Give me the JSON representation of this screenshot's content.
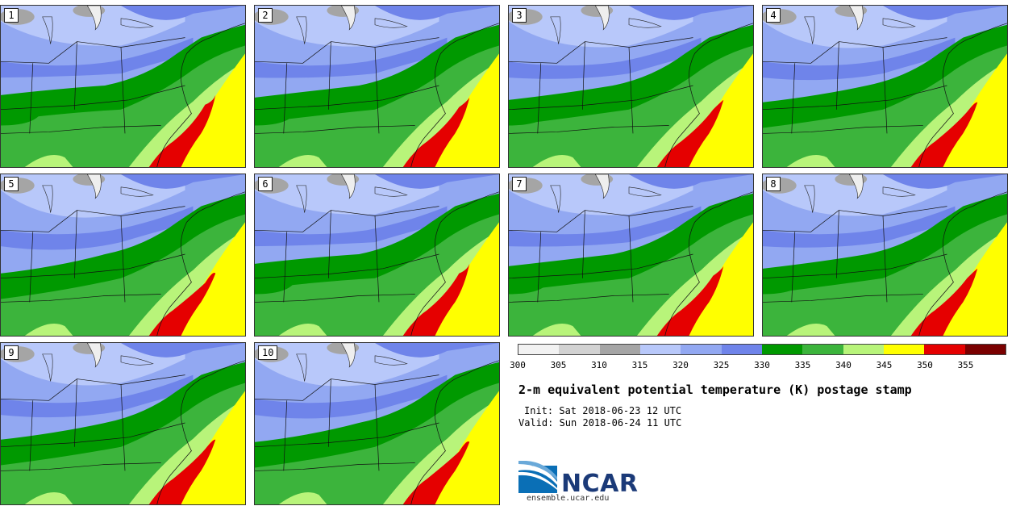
{
  "panels": [
    {
      "label": "1"
    },
    {
      "label": "2"
    },
    {
      "label": "3"
    },
    {
      "label": "4"
    },
    {
      "label": "5"
    },
    {
      "label": "6"
    },
    {
      "label": "7"
    },
    {
      "label": "8"
    },
    {
      "label": "9"
    },
    {
      "label": "10"
    }
  ],
  "colorbar": {
    "colors": [
      "#f2f2f2",
      "#d2d2d2",
      "#a5a5a5",
      "#b8c8fa",
      "#92a8f2",
      "#6f84ea",
      "#009900",
      "#3cb43c",
      "#b8f47a",
      "#ffff00",
      "#e50000",
      "#7a0000"
    ],
    "ticks": [
      "300",
      "305",
      "310",
      "315",
      "320",
      "325",
      "330",
      "335",
      "340",
      "345",
      "350",
      "355"
    ]
  },
  "title": "2-m equivalent potential temperature (K) postage stamp",
  "init": "Init: Sat 2018-06-23 12 UTC",
  "valid": "Valid: Sun 2018-06-24 11 UTC",
  "logo": {
    "name": "NCAR",
    "url": "ensemble.ucar.edu",
    "color": "#1b3a78"
  }
}
